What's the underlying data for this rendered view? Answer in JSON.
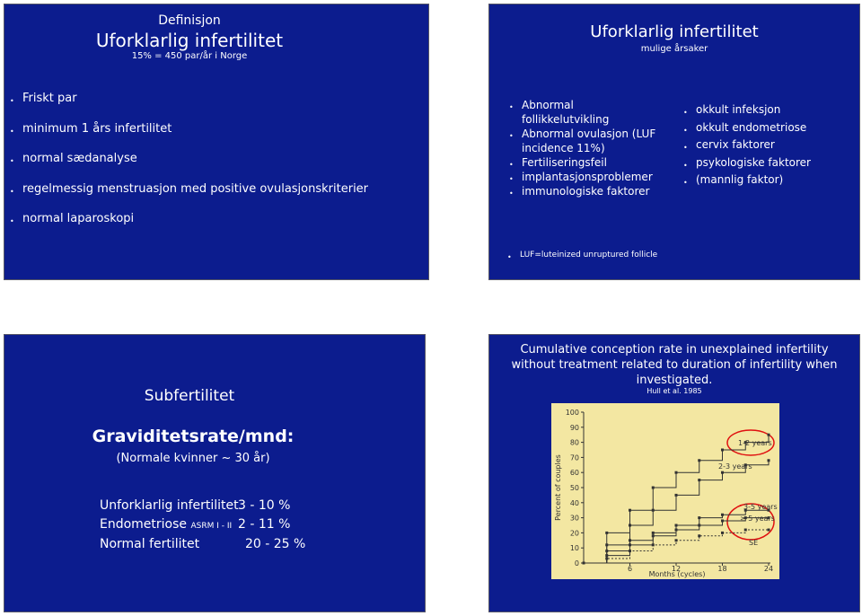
{
  "slides": [
    {
      "subtitle": "Definisjon",
      "title": "Uforklarlig infertilitet",
      "note": "15% = 450 par/år i Norge",
      "bullets": [
        "Friskt par",
        "minimum 1 års infertilitet",
        "normal sædanalyse",
        "regelmessig menstruasjon med positive ovulasjonskriterier",
        "normal laparoskopi"
      ]
    },
    {
      "title": "Uforklarlig infertilitet",
      "subtitle": "mulige årsaker",
      "left_bullets": [
        "Abnormal follikkelutvikling",
        "Abnormal ovulasjon (LUF incidence 11%)",
        "Fertiliseringsfeil",
        "implantasjonsproblemer",
        "immunologiske faktorer"
      ],
      "right_bullets": [
        "okkult infeksjon",
        "okkult endometriose",
        "cervix faktorer",
        "psykologiske faktorer",
        "(mannlig faktor)"
      ],
      "footnote": "LUF=luteinized unruptured follicle"
    },
    {
      "title": "Subfertilitet",
      "heading": "Graviditetsrate/mnd:",
      "subheading": "(Normale kvinner ~ 30 år)",
      "rows": [
        {
          "label": "Unforklarlig infertilitet",
          "value": "3 - 10 %"
        },
        {
          "label": "Endometriose",
          "qualifier": "ASRM I - II",
          "value": "2 - 11 %"
        },
        {
          "label": "Normal fertilitet",
          "value": "20 - 25 %"
        }
      ]
    },
    {
      "title": "Cumulative conception rate in unexplained infertility without treatment related to duration of infertility when investigated.",
      "citation": "Hull et al. 1985",
      "chart": {
        "type": "line",
        "y_label": "Percent of couples",
        "x_label": "Months (cycles)",
        "x": [
          0,
          3,
          6,
          9,
          12,
          15,
          18,
          21,
          24
        ],
        "xlim": [
          0,
          24
        ],
        "ylim": [
          0,
          100
        ],
        "xticks": [
          6,
          12,
          18,
          24
        ],
        "yticks": [
          0,
          10,
          20,
          30,
          40,
          50,
          60,
          70,
          80,
          90,
          100
        ],
        "series": [
          {
            "name": "1-2 years",
            "color": "#333333",
            "values": [
              0,
              20,
              35,
              50,
              60,
              68,
              75,
              80,
              85
            ]
          },
          {
            "name": "2-3 years",
            "color": "#333333",
            "values": [
              0,
              12,
              25,
              35,
              45,
              55,
              60,
              65,
              68
            ]
          },
          {
            "name": "3-5 years",
            "color": "#333333",
            "values": [
              0,
              8,
              15,
              20,
              25,
              30,
              32,
              35,
              35
            ]
          },
          {
            "name": "≥ 5 years",
            "color": "#333333",
            "values": [
              0,
              5,
              12,
              18,
              22,
              25,
              28,
              30,
              30
            ]
          },
          {
            "name": "SE",
            "color": "#333333",
            "values": [
              0,
              3,
              8,
              12,
              15,
              18,
              20,
              22,
              22
            ]
          }
        ]
      }
    }
  ]
}
